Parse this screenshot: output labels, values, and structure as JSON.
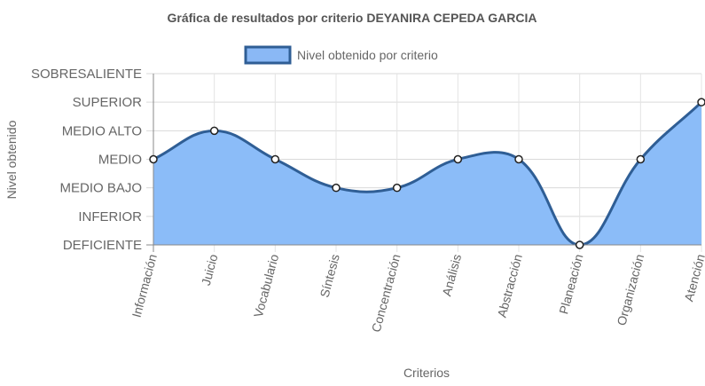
{
  "chart_data": {
    "type": "line",
    "title": "Gráfica de resultados por criterio DEYANIRA CEPEDA GARCIA",
    "xlabel": "Criterios",
    "ylabel": "Nivel obtenido",
    "categories": [
      "Información",
      "Juicio",
      "Vocabulario",
      "Síntesis",
      "Concentración",
      "Análisis",
      "Abstracción",
      "Planeación",
      "Organización",
      "Atención"
    ],
    "y_levels": [
      "DEFICIENTE",
      "INFERIOR",
      "MEDIO BAJO",
      "MEDIO",
      "MEDIO ALTO",
      "SUPERIOR",
      "SOBRESALIENTE"
    ],
    "ylim": [
      0,
      6
    ],
    "series": [
      {
        "name": "Nivel obtenido por criterio",
        "values": [
          3,
          4,
          3,
          2,
          2,
          3,
          3,
          0,
          3,
          5
        ],
        "value_labels": [
          "MEDIO",
          "MEDIO ALTO",
          "MEDIO",
          "MEDIO BAJO",
          "MEDIO BAJO",
          "MEDIO",
          "MEDIO",
          "DEFICIENTE",
          "MEDIO",
          "SUPERIOR"
        ],
        "fill": true,
        "smooth": true
      }
    ],
    "legend_position": "top",
    "grid": true,
    "colors": {
      "line": "#2f5e95",
      "fill": "#8bbcf8",
      "legend_fill": "#8ab8f5",
      "grid": "#d9d9d9",
      "axis": "#888888",
      "point_fill": "#ffffff",
      "point_stroke": "#222222"
    }
  }
}
